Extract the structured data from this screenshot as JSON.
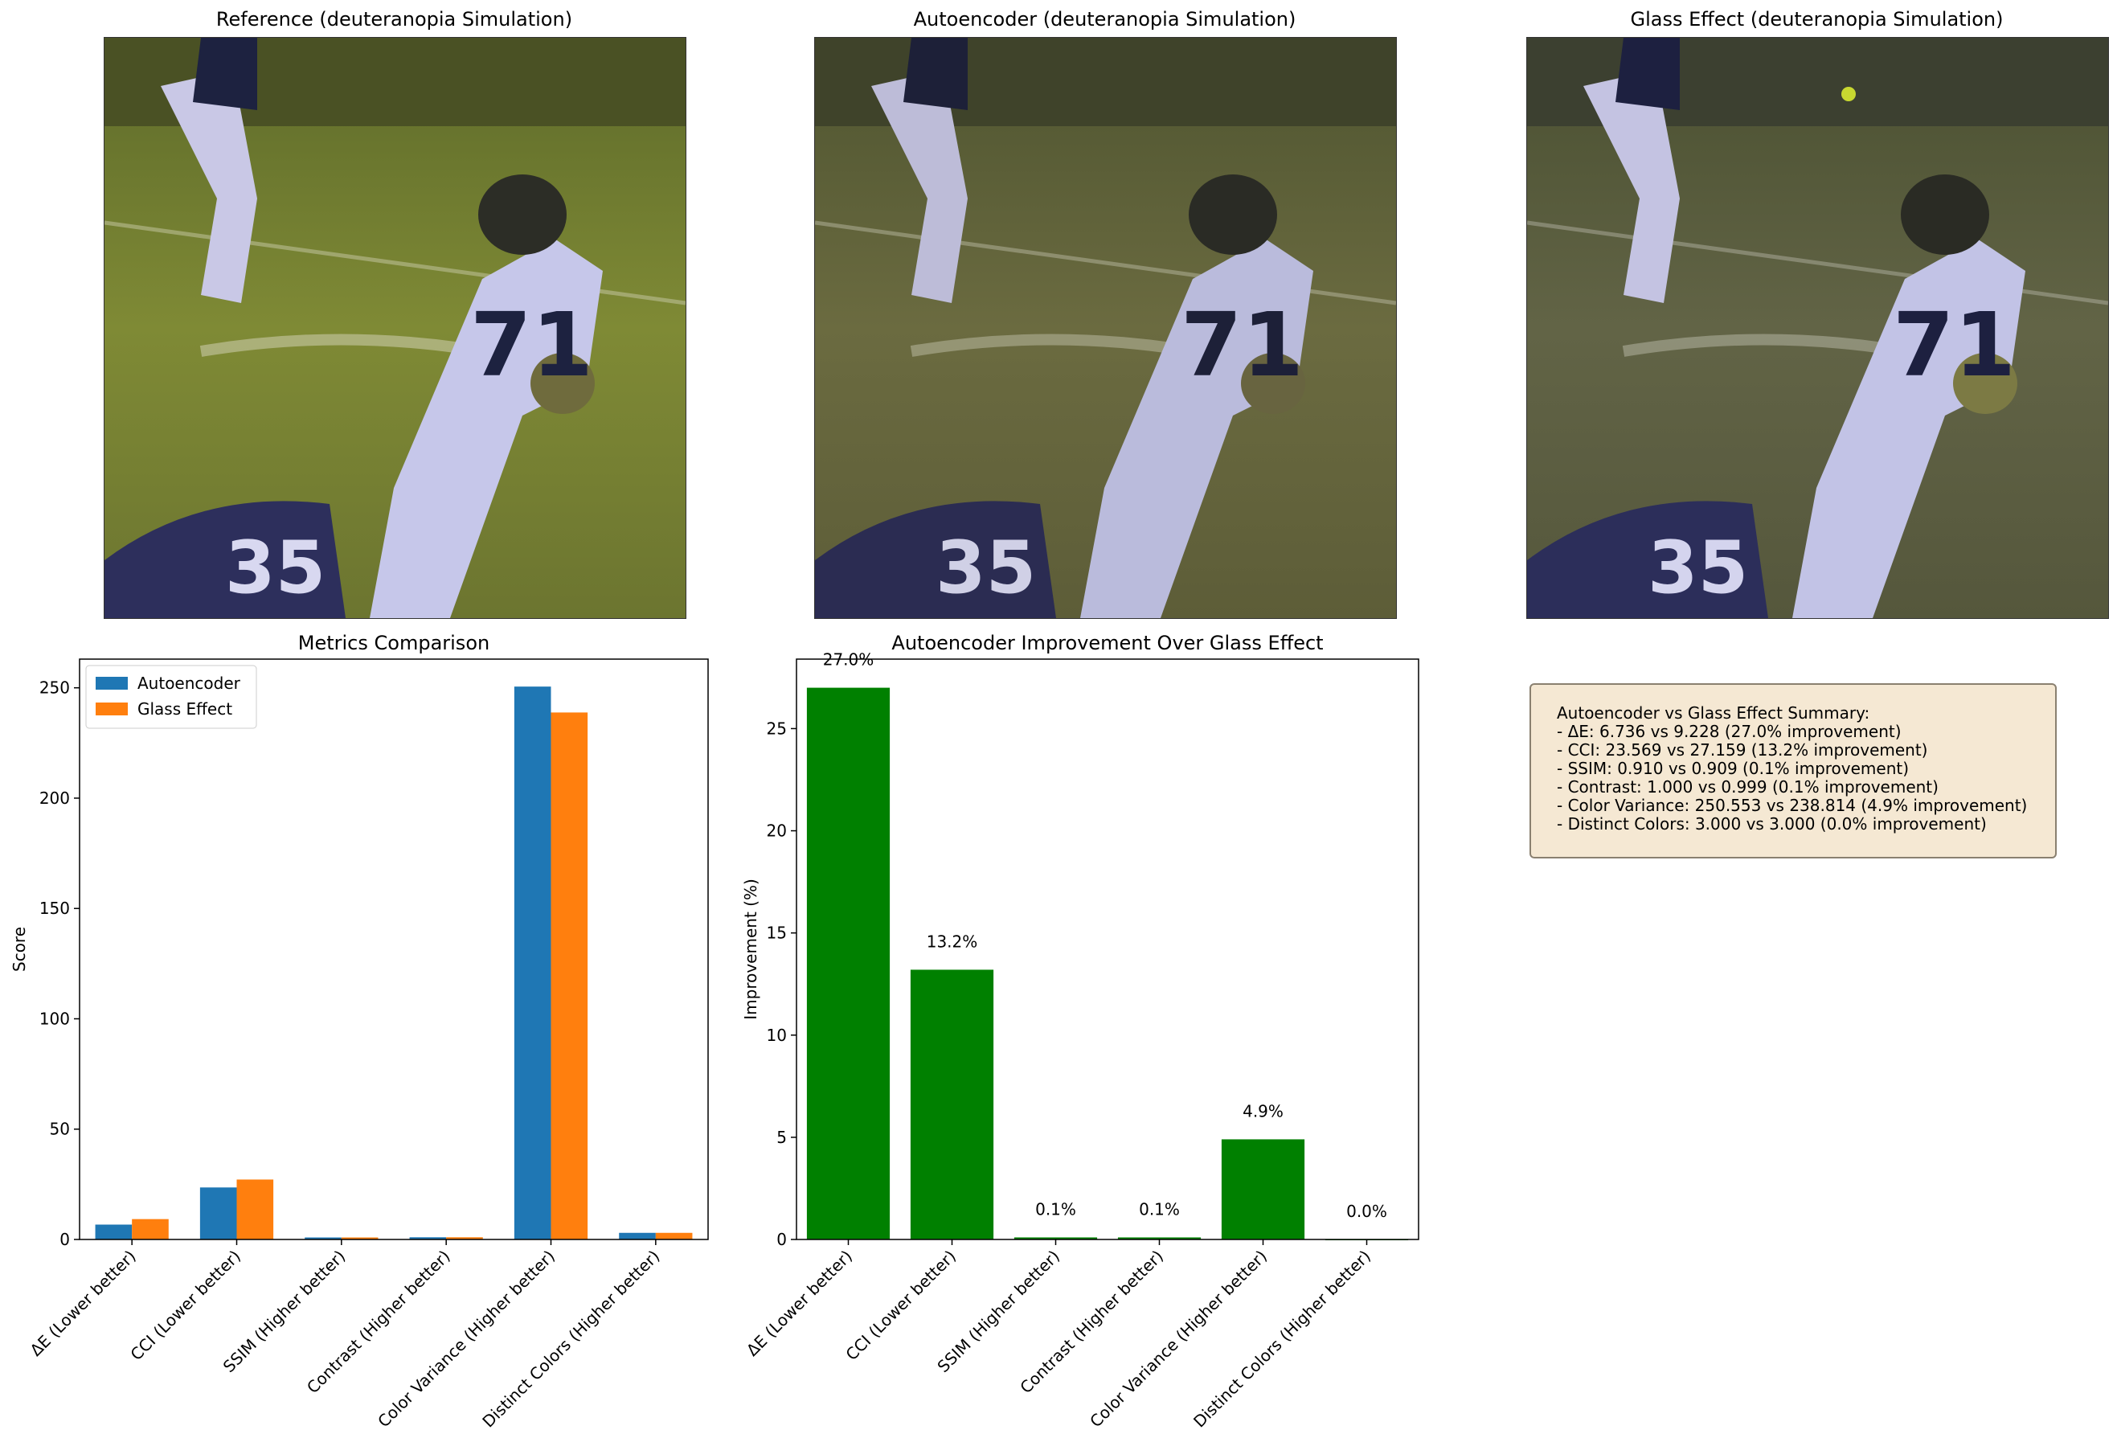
{
  "panels": {
    "reference_title": "Reference (deuteranopia Simulation)",
    "autoencoder_title": "Autoencoder (deuteranopia Simulation)",
    "glass_title": "Glass Effect (deuteranopia Simulation)"
  },
  "chart_data": [
    {
      "type": "bar",
      "title": "Metrics Comparison",
      "xlabel": "",
      "ylabel": "Score",
      "categories": [
        "ΔE (Lower better)",
        "CCI (Lower better)",
        "SSIM (Higher better)",
        "Contrast (Higher better)",
        "Color Variance (Higher better)",
        "Distinct Colors (Higher better)"
      ],
      "series": [
        {
          "name": "Autoencoder",
          "color": "#1f77b4",
          "values": [
            6.736,
            23.569,
            0.91,
            1.0,
            250.553,
            3.0
          ]
        },
        {
          "name": "Glass Effect",
          "color": "#ff7f0e",
          "values": [
            9.228,
            27.159,
            0.909,
            0.999,
            238.814,
            3.0
          ]
        }
      ],
      "ylim": [
        0,
        263
      ],
      "yticks": [
        0,
        50,
        100,
        150,
        200,
        250
      ],
      "legend": "top-left",
      "grid": false
    },
    {
      "type": "bar",
      "title": "Autoencoder Improvement Over Glass Effect",
      "xlabel": "",
      "ylabel": "Improvement (%)",
      "categories": [
        "ΔE (Lower better)",
        "CCI (Lower better)",
        "SSIM (Higher better)",
        "Contrast (Higher better)",
        "Color Variance (Higher better)",
        "Distinct Colors (Higher better)"
      ],
      "values": [
        27.0,
        13.2,
        0.1,
        0.1,
        4.9,
        0.0
      ],
      "labels": [
        "27.0%",
        "13.2%",
        "0.1%",
        "0.1%",
        "4.9%",
        "0.0%"
      ],
      "color": "#008000",
      "ylim": [
        0,
        28.4
      ],
      "yticks": [
        0,
        5,
        10,
        15,
        20,
        25
      ],
      "grid": false
    }
  ],
  "summary": {
    "heading": "Autoencoder vs Glass Effect Summary:",
    "lines": [
      "- ΔE: 6.736 vs 9.228 (27.0% improvement)",
      "- CCI: 23.569 vs 27.159 (13.2% improvement)",
      "- SSIM: 0.910 vs 0.909 (0.1% improvement)",
      "- Contrast: 1.000 vs 0.999 (0.1% improvement)",
      "- Color Variance: 250.553 vs 238.814 (4.9% improvement)",
      "- Distinct Colors: 3.000 vs 3.000 (0.0% improvement)"
    ]
  }
}
